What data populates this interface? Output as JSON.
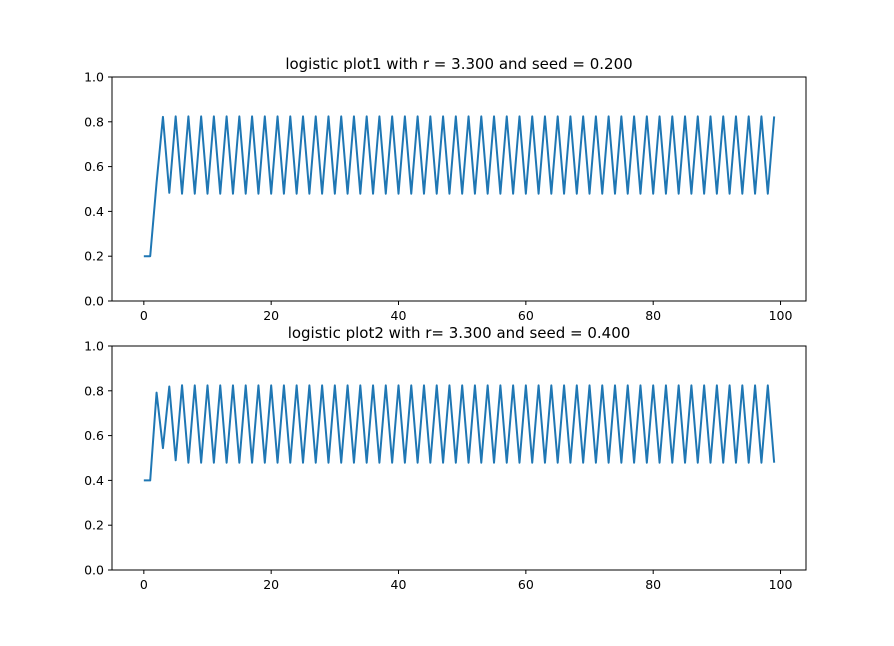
{
  "figure": {
    "background": "#ffffff",
    "line_color": "#1f77b4"
  },
  "chart_data": [
    {
      "type": "line",
      "title": "logistic plot1 with r = 3.300 and seed = 0.200",
      "xlabel": "",
      "ylabel": "",
      "xlim": [
        -5,
        104
      ],
      "ylim": [
        0,
        1
      ],
      "x_ticks": [
        "0",
        "20",
        "40",
        "60",
        "80",
        "100"
      ],
      "y_ticks": [
        "0.0",
        "0.2",
        "0.4",
        "0.6",
        "0.8",
        "1.0"
      ],
      "grid": false,
      "series": [
        {
          "x": [
            0,
            1,
            2,
            3,
            4,
            5,
            6,
            7,
            8,
            9,
            10,
            11,
            12,
            13,
            14,
            15,
            16,
            17,
            18,
            19,
            20,
            21,
            22,
            23,
            24,
            25,
            26,
            27,
            28,
            29,
            30,
            31,
            32,
            33,
            34,
            35,
            36,
            37,
            38,
            39,
            40,
            41,
            42,
            43,
            44,
            45,
            46,
            47,
            48,
            49,
            50,
            51,
            52,
            53,
            54,
            55,
            56,
            57,
            58,
            59,
            60,
            61,
            62,
            63,
            64,
            65,
            66,
            67,
            68,
            69,
            70,
            71,
            72,
            73,
            74,
            75,
            76,
            77,
            78,
            79,
            80,
            81,
            82,
            83,
            84,
            85,
            86,
            87,
            88,
            89,
            90,
            91,
            92,
            93,
            94,
            95,
            96,
            97,
            98,
            99
          ],
          "values": [
            0.2,
            0.2,
            0.528,
            0.822,
            0.483,
            0.824,
            0.479,
            0.824,
            0.479,
            0.824,
            0.479,
            0.824,
            0.479,
            0.824,
            0.479,
            0.824,
            0.479,
            0.824,
            0.479,
            0.824,
            0.479,
            0.824,
            0.479,
            0.824,
            0.479,
            0.824,
            0.479,
            0.824,
            0.479,
            0.824,
            0.479,
            0.824,
            0.479,
            0.824,
            0.479,
            0.824,
            0.479,
            0.824,
            0.479,
            0.824,
            0.479,
            0.824,
            0.479,
            0.824,
            0.479,
            0.824,
            0.479,
            0.824,
            0.479,
            0.824,
            0.479,
            0.824,
            0.479,
            0.824,
            0.479,
            0.824,
            0.479,
            0.824,
            0.479,
            0.824,
            0.479,
            0.824,
            0.479,
            0.824,
            0.479,
            0.824,
            0.479,
            0.824,
            0.479,
            0.824,
            0.479,
            0.824,
            0.479,
            0.824,
            0.479,
            0.824,
            0.479,
            0.824,
            0.479,
            0.824,
            0.479,
            0.824,
            0.479,
            0.824,
            0.479,
            0.824,
            0.479,
            0.824,
            0.479,
            0.824,
            0.479,
            0.824,
            0.479,
            0.824,
            0.479,
            0.824,
            0.479,
            0.824,
            0.479,
            0.824
          ]
        }
      ]
    },
    {
      "type": "line",
      "title": "logistic plot2 with r= 3.300 and seed = 0.400",
      "xlabel": "",
      "ylabel": "",
      "xlim": [
        -5,
        104
      ],
      "ylim": [
        0,
        1
      ],
      "x_ticks": [
        "0",
        "20",
        "40",
        "60",
        "80",
        "100"
      ],
      "y_ticks": [
        "0.0",
        "0.2",
        "0.4",
        "0.6",
        "0.8",
        "1.0"
      ],
      "grid": false,
      "series": [
        {
          "x": [
            0,
            1,
            2,
            3,
            4,
            5,
            6,
            7,
            8,
            9,
            10,
            11,
            12,
            13,
            14,
            15,
            16,
            17,
            18,
            19,
            20,
            21,
            22,
            23,
            24,
            25,
            26,
            27,
            28,
            29,
            30,
            31,
            32,
            33,
            34,
            35,
            36,
            37,
            38,
            39,
            40,
            41,
            42,
            43,
            44,
            45,
            46,
            47,
            48,
            49,
            50,
            51,
            52,
            53,
            54,
            55,
            56,
            57,
            58,
            59,
            60,
            61,
            62,
            63,
            64,
            65,
            66,
            67,
            68,
            69,
            70,
            71,
            72,
            73,
            74,
            75,
            76,
            77,
            78,
            79,
            80,
            81,
            82,
            83,
            84,
            85,
            86,
            87,
            88,
            89,
            90,
            91,
            92,
            93,
            94,
            95,
            96,
            97,
            98,
            99
          ],
          "values": [
            0.4,
            0.4,
            0.792,
            0.544,
            0.819,
            0.49,
            0.825,
            0.479,
            0.824,
            0.479,
            0.824,
            0.479,
            0.824,
            0.479,
            0.824,
            0.479,
            0.824,
            0.479,
            0.824,
            0.479,
            0.824,
            0.479,
            0.824,
            0.479,
            0.824,
            0.479,
            0.824,
            0.479,
            0.824,
            0.479,
            0.824,
            0.479,
            0.824,
            0.479,
            0.824,
            0.479,
            0.824,
            0.479,
            0.824,
            0.479,
            0.824,
            0.479,
            0.824,
            0.479,
            0.824,
            0.479,
            0.824,
            0.479,
            0.824,
            0.479,
            0.824,
            0.479,
            0.824,
            0.479,
            0.824,
            0.479,
            0.824,
            0.479,
            0.824,
            0.479,
            0.824,
            0.479,
            0.824,
            0.479,
            0.824,
            0.479,
            0.824,
            0.479,
            0.824,
            0.479,
            0.824,
            0.479,
            0.824,
            0.479,
            0.824,
            0.479,
            0.824,
            0.479,
            0.824,
            0.479,
            0.824,
            0.479,
            0.824,
            0.479,
            0.824,
            0.479,
            0.824,
            0.479,
            0.824,
            0.479,
            0.824,
            0.479,
            0.824,
            0.479,
            0.824,
            0.479,
            0.824,
            0.479,
            0.824,
            0.479
          ]
        }
      ]
    }
  ]
}
